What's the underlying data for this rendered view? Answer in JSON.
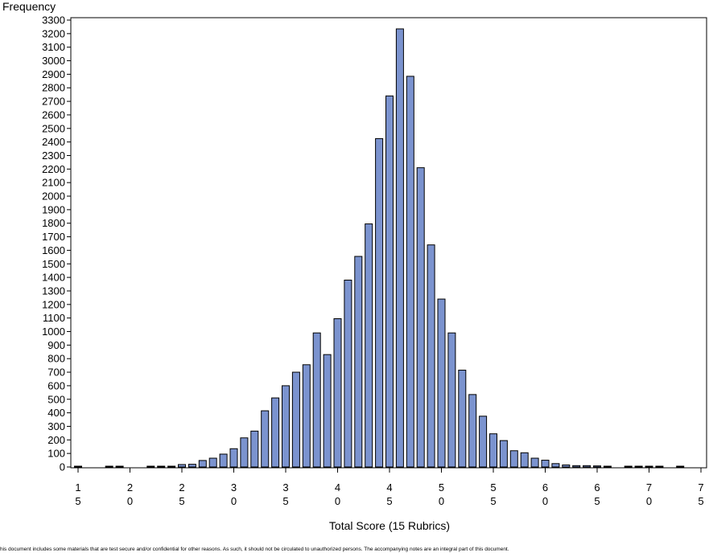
{
  "chart_data": {
    "type": "bar",
    "title": "",
    "ylabel": "Frequency",
    "xlabel": "Total Score (15 Rubrics)",
    "ylim": [
      0,
      3300
    ],
    "ytick_step": 100,
    "x": [
      15,
      16,
      17,
      18,
      19,
      20,
      21,
      22,
      23,
      24,
      25,
      26,
      27,
      28,
      29,
      30,
      31,
      32,
      33,
      34,
      35,
      36,
      37,
      38,
      39,
      40,
      41,
      42,
      43,
      44,
      45,
      46,
      47,
      48,
      49,
      50,
      51,
      52,
      53,
      54,
      55,
      56,
      57,
      58,
      59,
      60,
      61,
      62,
      63,
      64,
      65,
      66,
      67,
      68,
      69,
      70,
      71,
      72,
      73,
      74,
      75
    ],
    "values": [
      3,
      0,
      0,
      1,
      2,
      0,
      0,
      2,
      4,
      5,
      18,
      20,
      48,
      65,
      95,
      135,
      215,
      265,
      415,
      510,
      600,
      700,
      755,
      990,
      830,
      1095,
      1380,
      1555,
      1795,
      2425,
      2740,
      3235,
      2885,
      2210,
      1640,
      1240,
      990,
      715,
      535,
      375,
      245,
      195,
      120,
      105,
      65,
      50,
      25,
      15,
      10,
      10,
      8,
      5,
      0,
      3,
      3,
      3,
      3,
      0,
      3,
      0,
      0
    ],
    "x_tick_labels": [
      {
        "value": 15,
        "top": "1",
        "bottom": "5"
      },
      {
        "value": 20,
        "top": "2",
        "bottom": "0"
      },
      {
        "value": 25,
        "top": "2",
        "bottom": "5"
      },
      {
        "value": 30,
        "top": "3",
        "bottom": "0"
      },
      {
        "value": 35,
        "top": "3",
        "bottom": "5"
      },
      {
        "value": 40,
        "top": "4",
        "bottom": "0"
      },
      {
        "value": 45,
        "top": "4",
        "bottom": "5"
      },
      {
        "value": 50,
        "top": "5",
        "bottom": "0"
      },
      {
        "value": 55,
        "top": "5",
        "bottom": "5"
      },
      {
        "value": 60,
        "top": "6",
        "bottom": "0"
      },
      {
        "value": 65,
        "top": "6",
        "bottom": "5"
      },
      {
        "value": 70,
        "top": "7",
        "bottom": "0"
      },
      {
        "value": 75,
        "top": "7",
        "bottom": "5"
      }
    ],
    "bar_color": "#7b93cf",
    "bar_edge_color": "#000000",
    "grid": false,
    "legend": "none"
  },
  "footer_text": "his document includes some materials that are test secure and/or confidential for other reasons. As such, it should not be circulated to unauthorized persons. The accompanying notes are an integral part of this document."
}
